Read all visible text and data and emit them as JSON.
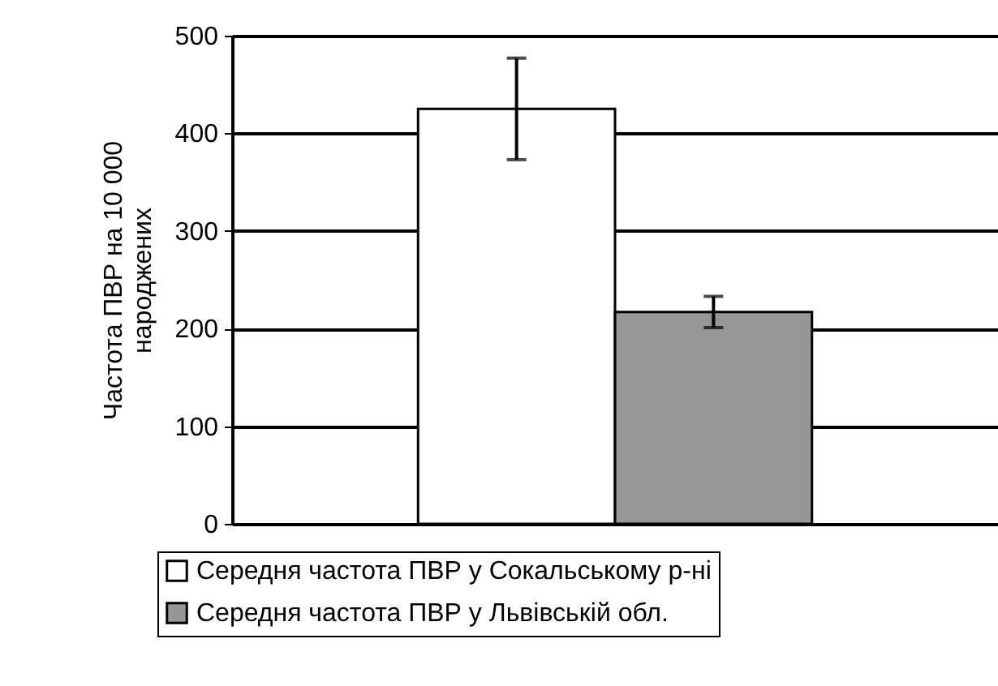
{
  "chart_data": {
    "type": "bar",
    "ylabel": "Частота ПВР на 10 000 народжених",
    "categories": [
      null
    ],
    "series": [
      {
        "name": "Середня частота ПВР у Сокальському р-ні",
        "color": "#ffffff",
        "values": [
          425
        ],
        "errors": [
          52
        ]
      },
      {
        "name": "Середня частота ПВР у Львівській обл.",
        "color": "#969696",
        "values": [
          217
        ],
        "errors": [
          16
        ]
      }
    ],
    "ylim": [
      0,
      500
    ],
    "yticks": [
      0,
      100,
      200,
      300,
      400,
      500
    ],
    "grid": "y",
    "legend": "bottom"
  }
}
